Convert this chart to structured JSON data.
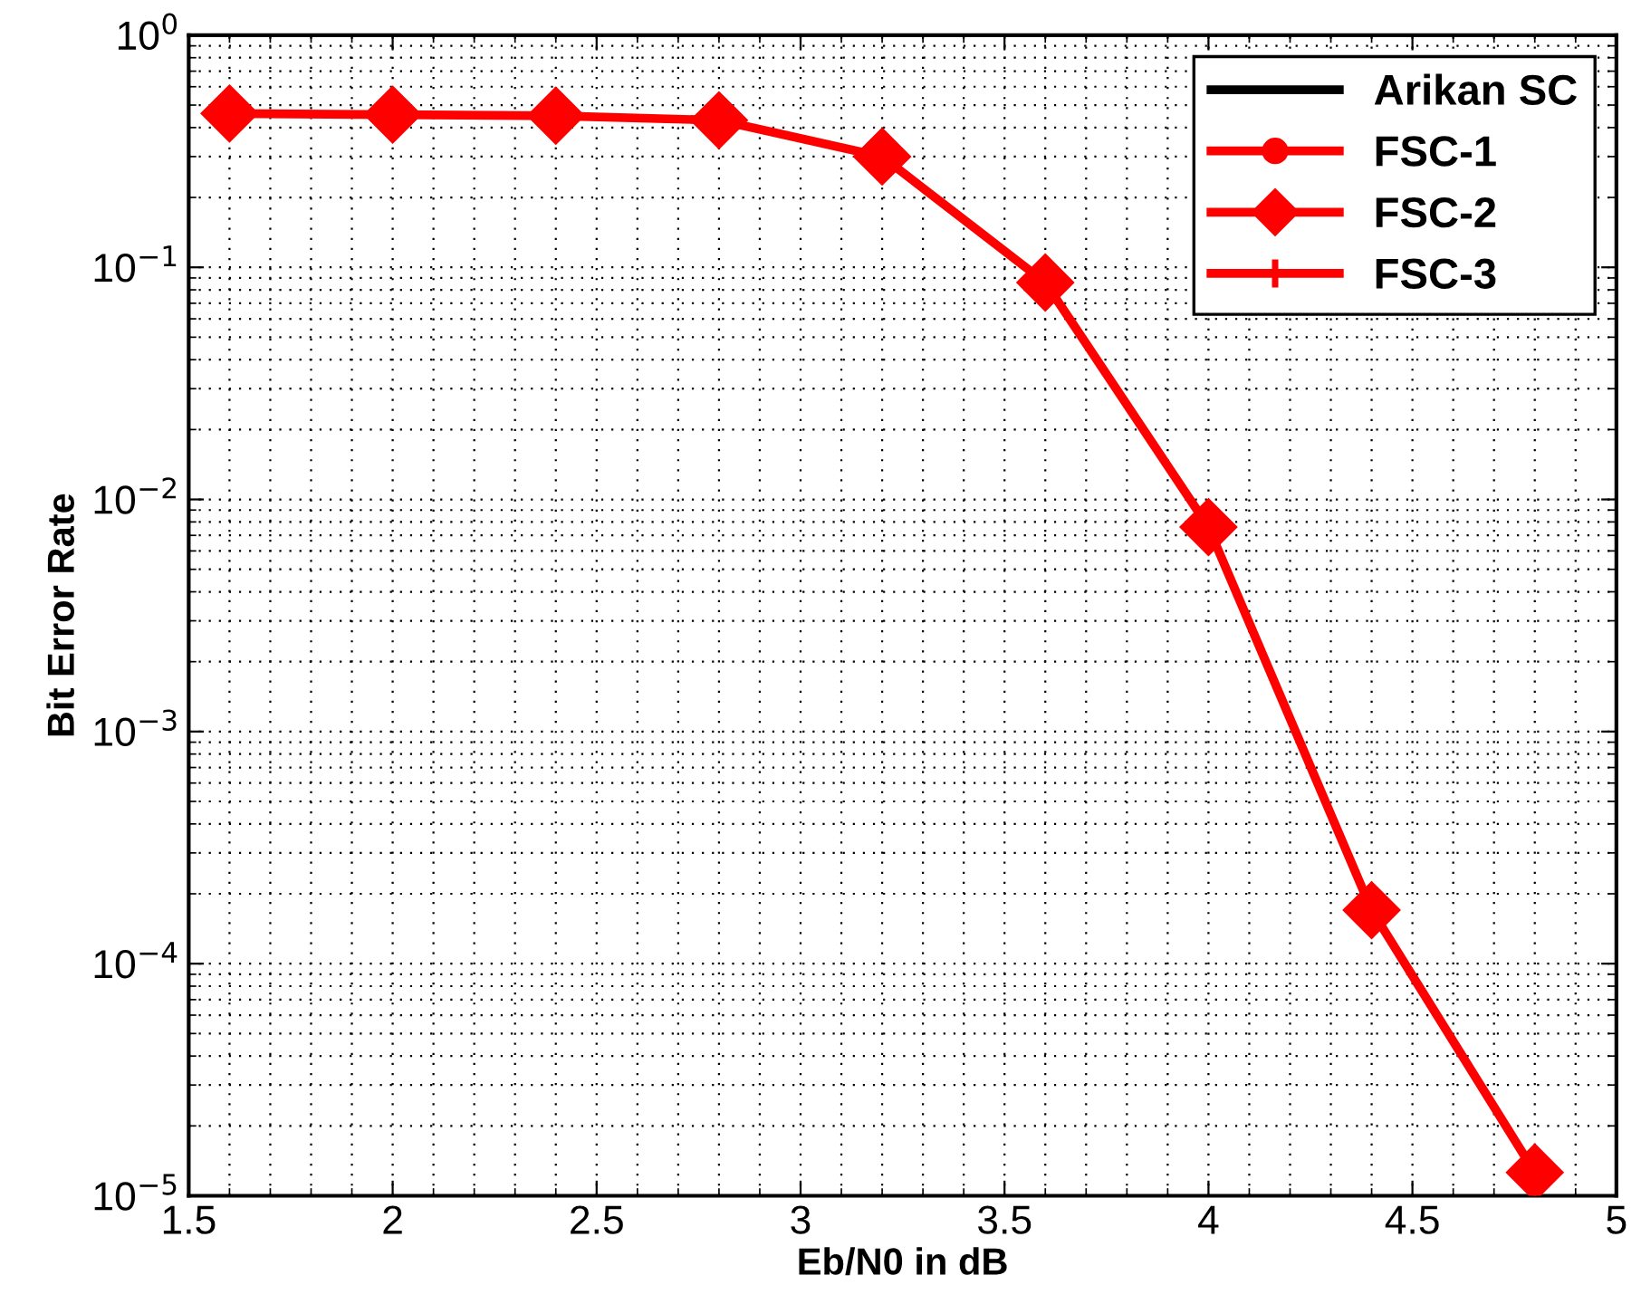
{
  "chart_data": {
    "type": "line",
    "xlabel": "Eb/N0 in dB",
    "ylabel": "Bit Error Rate",
    "log": "y",
    "x": [
      1.6,
      2.0,
      2.4,
      2.8,
      3.2,
      3.6,
      4.0,
      4.4,
      4.8
    ],
    "series": [
      {
        "name": "Arikan SC",
        "color": "#000000",
        "marker": "none",
        "values": [
          null,
          null,
          null,
          null,
          null,
          null,
          null,
          null,
          null
        ]
      },
      {
        "name": "FSC-1",
        "color": "#ff0000",
        "marker": "circle",
        "values": [
          null,
          null,
          null,
          null,
          null,
          null,
          null,
          null,
          null
        ]
      },
      {
        "name": "FSC-2",
        "color": "#ff0000",
        "marker": "diamond",
        "values": [
          0.46,
          0.455,
          0.45,
          0.43,
          0.3,
          0.086,
          0.0076,
          0.00017,
          1.26e-05
        ]
      },
      {
        "name": "FSC-3",
        "color": "#ff0000",
        "marker": "cross",
        "values": [
          null,
          null,
          null,
          null,
          null,
          null,
          null,
          null,
          null
        ]
      }
    ],
    "xlim": [
      1.5,
      5
    ],
    "xticks": [
      1.5,
      2,
      2.5,
      3,
      3.5,
      4,
      4.5,
      5
    ],
    "ylim": [
      1e-05,
      1
    ],
    "yticks": [
      {
        "value": 1e-05,
        "label": "10$^{−5}$"
      },
      {
        "value": 0.0001,
        "label": "10$^{−4}$"
      },
      {
        "value": 0.001,
        "label": "10$^{−3}$"
      },
      {
        "value": 0.01,
        "label": "10$^{−2}$"
      },
      {
        "value": 0.1,
        "label": "10$^{−1}$"
      },
      {
        "value": 1,
        "label": "10$^{0}$"
      }
    ],
    "grid": true,
    "legend": "top right",
    "line_style": "solid"
  }
}
